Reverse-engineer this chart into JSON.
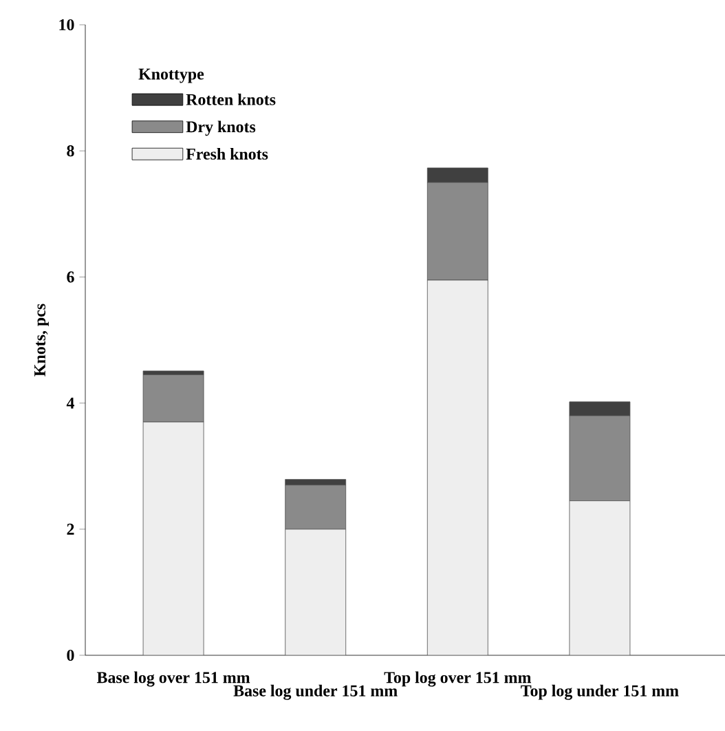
{
  "chart_data": {
    "type": "bar",
    "stacked": true,
    "ylabel": "Knots, pcs",
    "legend_title": "Knottype",
    "legend": "top left",
    "categories": [
      "Base log over 151 mm",
      "Base log under 151 mm",
      "Top log over 151 mm",
      "Top log under 151 mm"
    ],
    "series": [
      {
        "name": "Fresh knots",
        "color": "#eeeeee",
        "values": [
          3.7,
          2.0,
          5.95,
          2.45
        ]
      },
      {
        "name": "Dry knots",
        "color": "#8a8a8a",
        "values": [
          0.75,
          0.7,
          1.55,
          1.35
        ]
      },
      {
        "name": "Rotten knots",
        "color": "#404040",
        "values": [
          0.06,
          0.09,
          0.23,
          0.22
        ]
      }
    ],
    "ylim": [
      0,
      10
    ],
    "yticks": [
      0,
      2,
      4,
      6,
      8,
      10
    ],
    "grid": false
  }
}
